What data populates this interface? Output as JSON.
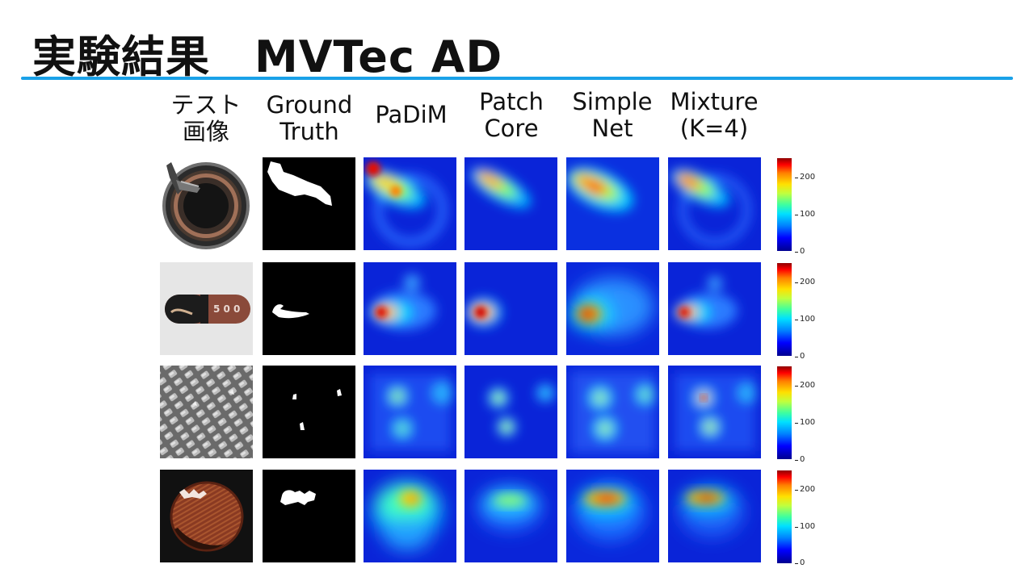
{
  "slide": {
    "title": "実験結果　MVTec AD"
  },
  "headers": [
    "テスト\n画像",
    "Ground\nTruth",
    "PaDiM",
    "Patch\nCore",
    "Simple\nNet",
    "Mixture\n(K=4)"
  ],
  "colorbar": {
    "ticks": [
      "200",
      "100",
      "0"
    ],
    "range": [
      0,
      255
    ],
    "colormap": "jet"
  },
  "rows": [
    {
      "category": "bottle"
    },
    {
      "category": "capsule"
    },
    {
      "category": "grid"
    },
    {
      "category": "hazelnut"
    }
  ],
  "colors": {
    "accent_rule": "#1aa1e8"
  }
}
